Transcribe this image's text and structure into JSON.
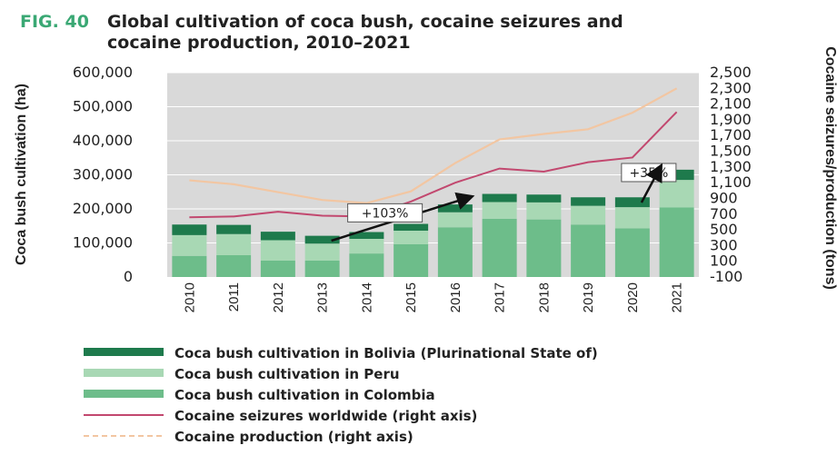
{
  "figure": {
    "label": "FIG. 40",
    "title_line1": "Global cultivation of coca bush, cocaine seizures and",
    "title_line2": "cocaine production, 2010–2021"
  },
  "chart_data": {
    "type": "bar",
    "stacked": true,
    "categories": [
      "2010",
      "2011",
      "2012",
      "2013",
      "2014",
      "2015",
      "2016",
      "2017",
      "2018",
      "2019",
      "2020",
      "2021"
    ],
    "left_axis": {
      "label": "Coca bush cultivation (ha)",
      "range": [
        0,
        600000
      ],
      "ticks": [
        0,
        100000,
        200000,
        300000,
        400000,
        500000,
        600000
      ],
      "tick_labels": [
        "0",
        "100,000",
        "200,000",
        "300,000",
        "400,000",
        "500,000",
        "600,000"
      ]
    },
    "right_axis": {
      "label": "Cocaine seizures/production (tons)",
      "range": [
        -100,
        2500
      ],
      "ticks": [
        -100,
        100,
        300,
        500,
        700,
        900,
        1100,
        1300,
        1500,
        1700,
        1900,
        2100,
        2300,
        2500
      ],
      "tick_labels": [
        "-100",
        "100",
        "300",
        "500",
        "700",
        "900",
        "1,100",
        "1,300",
        "1,500",
        "1,700",
        "1,900",
        "2,100",
        "2,300",
        "2,500"
      ]
    },
    "bar_series": [
      {
        "name": "Coca bush cultivation in Colombia",
        "color": "#6dbd8a",
        "values": [
          62000,
          64000,
          48000,
          48000,
          69000,
          96000,
          146000,
          171000,
          169000,
          154000,
          143000,
          204000
        ]
      },
      {
        "name": "Coca bush cultivation in Peru",
        "color": "#a8d8b4",
        "values": [
          61000,
          62000,
          60000,
          50000,
          43000,
          40000,
          44000,
          49000,
          50000,
          55000,
          62000,
          81000
        ]
      },
      {
        "name": "Coca bush cultivation in Bolivia (Plurinational State of)",
        "color": "#1e7a4c",
        "values": [
          31000,
          27000,
          25000,
          23000,
          20000,
          20000,
          23000,
          24000,
          23000,
          25000,
          29000,
          30000
        ]
      }
    ],
    "line_series": [
      {
        "name": "Cocaine seizures worldwide (right axis)",
        "color": "#c2486f",
        "style": "solid",
        "values": [
          660,
          670,
          730,
          680,
          670,
          860,
          1100,
          1280,
          1240,
          1360,
          1420,
          2000
        ]
      },
      {
        "name": "Cocaine production (right axis)",
        "color": "#f2c6a2",
        "style": "dashed",
        "values": [
          1130,
          1080,
          980,
          880,
          840,
          990,
          1350,
          1650,
          1720,
          1780,
          1990,
          2300
        ]
      }
    ],
    "annotations": [
      {
        "text": "+103%",
        "from_year": "2013",
        "to_year": "2017"
      },
      {
        "text": "+35%",
        "from_year": "2017",
        "to_year": "2021"
      }
    ],
    "grid": true,
    "legend_position": "bottom"
  },
  "legend": [
    {
      "label": "Coca bush cultivation in Bolivia (Plurinational State of)",
      "swatch": "bar",
      "color": "#1e7a4c"
    },
    {
      "label": "Coca bush cultivation in Peru",
      "swatch": "bar",
      "color": "#a8d8b4"
    },
    {
      "label": "Coca bush cultivation in Colombia",
      "swatch": "bar",
      "color": "#6dbd8a"
    },
    {
      "label": "Cocaine seizures worldwide (right axis)",
      "swatch": "line",
      "color": "#c2486f"
    },
    {
      "label": "Cocaine production (right axis)",
      "swatch": "dashed",
      "color": "#f2c6a2"
    }
  ]
}
